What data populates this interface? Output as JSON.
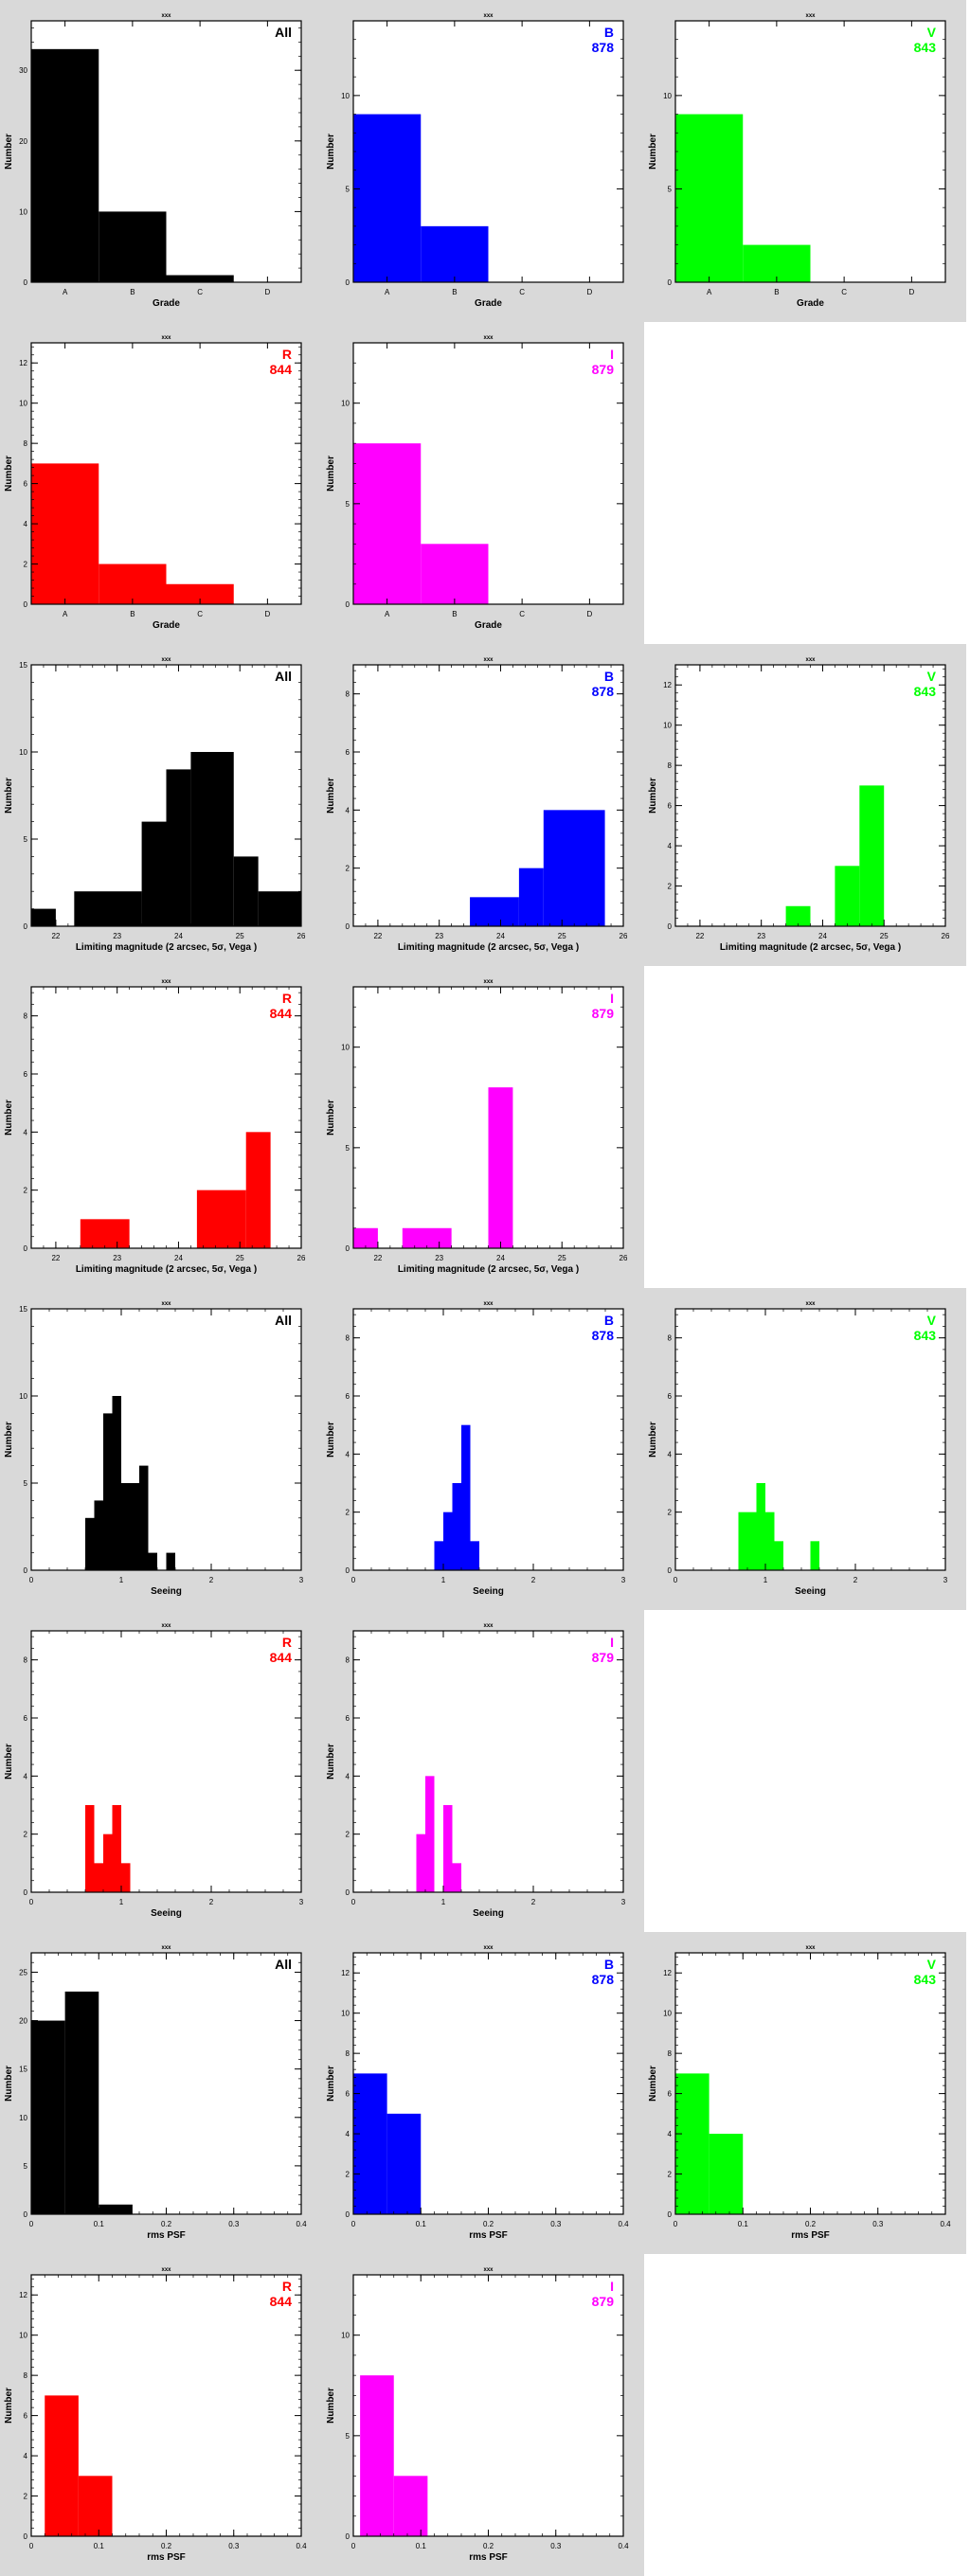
{
  "figure": {
    "panel_background": "#d9d9d9",
    "plot_background": "#ffffff",
    "top_label": "xxx"
  },
  "chart_data": [
    {
      "row": 0,
      "col": 0,
      "type": "bar",
      "title": "xxx",
      "band": "All",
      "count": "",
      "color": "#000000",
      "xlabel": "Grade",
      "xaxis": "cat",
      "xlim": [
        0,
        4
      ],
      "ticks": [
        "A",
        "B",
        "C",
        "D"
      ],
      "ylim": [
        0,
        37
      ],
      "yticks": [
        0,
        10,
        20,
        30
      ],
      "ylabel": "Number",
      "bars": [
        [
          0,
          1,
          33
        ],
        [
          1,
          2,
          10
        ],
        [
          2,
          3,
          1
        ]
      ]
    },
    {
      "row": 0,
      "col": 1,
      "type": "bar",
      "title": "xxx",
      "band": "B",
      "count": "878",
      "color": "#0000ff",
      "xlabel": "Grade",
      "xaxis": "cat",
      "xlim": [
        0,
        4
      ],
      "ticks": [
        "A",
        "B",
        "C",
        "D"
      ],
      "ylim": [
        0,
        14
      ],
      "yticks": [
        0,
        5,
        10
      ],
      "ylabel": "Number",
      "bars": [
        [
          0,
          1,
          9
        ],
        [
          1,
          2,
          3
        ]
      ]
    },
    {
      "row": 0,
      "col": 2,
      "type": "bar",
      "title": "xxx",
      "band": "V",
      "count": "843",
      "color": "#00ff00",
      "xlabel": "Grade",
      "xaxis": "cat",
      "xlim": [
        0,
        4
      ],
      "ticks": [
        "A",
        "B",
        "C",
        "D"
      ],
      "ylim": [
        0,
        14
      ],
      "yticks": [
        0,
        5,
        10
      ],
      "ylabel": "Number",
      "bars": [
        [
          0,
          1,
          9
        ],
        [
          1,
          2,
          2
        ]
      ]
    },
    {
      "row": 1,
      "col": 0,
      "type": "bar",
      "title": "xxx",
      "band": "R",
      "count": "844",
      "color": "#ff0000",
      "xlabel": "Grade",
      "xaxis": "cat",
      "xlim": [
        0,
        4
      ],
      "ticks": [
        "A",
        "B",
        "C",
        "D"
      ],
      "ylim": [
        0,
        13
      ],
      "yticks": [
        0,
        2,
        4,
        6,
        8,
        10,
        12
      ],
      "ylabel": "Number",
      "bars": [
        [
          0,
          1,
          7
        ],
        [
          1,
          2,
          2
        ],
        [
          2,
          3,
          1
        ]
      ]
    },
    {
      "row": 1,
      "col": 1,
      "type": "bar",
      "title": "xxx",
      "band": "I",
      "count": "879",
      "color": "#ff00ff",
      "xlabel": "Grade",
      "xaxis": "cat",
      "xlim": [
        0,
        4
      ],
      "ticks": [
        "A",
        "B",
        "C",
        "D"
      ],
      "ylim": [
        0,
        13
      ],
      "yticks": [
        0,
        5,
        10
      ],
      "ylabel": "Number",
      "bars": [
        [
          0,
          1,
          8
        ],
        [
          1,
          2,
          3
        ]
      ]
    },
    {
      "row": 2,
      "col": 0,
      "type": "bar",
      "title": "xxx",
      "band": "All",
      "count": "",
      "color": "#000000",
      "xlabel": "Limiting magnitude (2 arcsec, 5σ, Vega )",
      "xaxis": "num",
      "xlim": [
        21.6,
        26
      ],
      "xticks": [
        22,
        23,
        24,
        25,
        26
      ],
      "ylim": [
        0,
        15
      ],
      "yticks": [
        0,
        5,
        10,
        15
      ],
      "ylabel": "Number",
      "bars": [
        [
          21.6,
          22.0,
          1
        ],
        [
          22.3,
          23.4,
          2
        ],
        [
          23.4,
          23.8,
          6
        ],
        [
          23.8,
          24.2,
          9
        ],
        [
          24.2,
          24.9,
          10
        ],
        [
          24.9,
          25.3,
          4
        ],
        [
          25.3,
          26.0,
          2
        ]
      ]
    },
    {
      "row": 2,
      "col": 1,
      "type": "bar",
      "title": "xxx",
      "band": "B",
      "count": "878",
      "color": "#0000ff",
      "xlabel": "Limiting magnitude (2 arcsec, 5σ, Vega )",
      "xaxis": "num",
      "xlim": [
        21.6,
        26
      ],
      "xticks": [
        22,
        23,
        24,
        25,
        26
      ],
      "ylim": [
        0,
        9
      ],
      "yticks": [
        0,
        2,
        4,
        6,
        8
      ],
      "ylabel": "Number",
      "bars": [
        [
          23.5,
          24.3,
          1
        ],
        [
          24.3,
          24.7,
          2
        ],
        [
          24.7,
          25.7,
          4
        ]
      ]
    },
    {
      "row": 2,
      "col": 2,
      "type": "bar",
      "title": "xxx",
      "band": "V",
      "count": "843",
      "color": "#00ff00",
      "xlabel": "Limiting magnitude (2 arcsec, 5σ, Vega )",
      "xaxis": "num",
      "xlim": [
        21.6,
        26
      ],
      "xticks": [
        22,
        23,
        24,
        25,
        26
      ],
      "ylim": [
        0,
        13
      ],
      "yticks": [
        0,
        2,
        4,
        6,
        8,
        10,
        12
      ],
      "ylabel": "Number",
      "bars": [
        [
          23.4,
          23.8,
          1
        ],
        [
          24.2,
          24.6,
          3
        ],
        [
          24.6,
          25.0,
          7
        ]
      ]
    },
    {
      "row": 3,
      "col": 0,
      "type": "bar",
      "title": "xxx",
      "band": "R",
      "count": "844",
      "color": "#ff0000",
      "xlabel": "Limiting magnitude (2 arcsec, 5σ, Vega )",
      "xaxis": "num",
      "xlim": [
        21.6,
        26
      ],
      "xticks": [
        22,
        23,
        24,
        25,
        26
      ],
      "ylim": [
        0,
        9
      ],
      "yticks": [
        0,
        2,
        4,
        6,
        8
      ],
      "ylabel": "Number",
      "bars": [
        [
          22.4,
          23.2,
          1
        ],
        [
          24.3,
          25.1,
          2
        ],
        [
          25.1,
          25.5,
          4
        ]
      ]
    },
    {
      "row": 3,
      "col": 1,
      "type": "bar",
      "title": "xxx",
      "band": "I",
      "count": "879",
      "color": "#ff00ff",
      "xlabel": "Limiting magnitude (2 arcsec, 5σ, Vega )",
      "xaxis": "num",
      "xlim": [
        21.6,
        26
      ],
      "xticks": [
        22,
        23,
        24,
        25,
        26
      ],
      "ylim": [
        0,
        13
      ],
      "yticks": [
        0,
        5,
        10
      ],
      "ylabel": "Number",
      "bars": [
        [
          21.6,
          22.0,
          1
        ],
        [
          22.4,
          23.2,
          1
        ],
        [
          23.8,
          24.2,
          8
        ]
      ]
    },
    {
      "row": 4,
      "col": 0,
      "type": "bar",
      "title": "xxx",
      "band": "All",
      "count": "",
      "color": "#000000",
      "xlabel": "Seeing",
      "xaxis": "num",
      "xlim": [
        0,
        3
      ],
      "xticks": [
        0,
        1,
        2,
        3
      ],
      "ylim": [
        0,
        15
      ],
      "yticks": [
        0,
        5,
        10,
        15
      ],
      "ylabel": "Number",
      "bars": [
        [
          0.6,
          0.7,
          3
        ],
        [
          0.7,
          0.8,
          4
        ],
        [
          0.8,
          0.9,
          9
        ],
        [
          0.9,
          1.0,
          10
        ],
        [
          1.0,
          1.1,
          5
        ],
        [
          1.1,
          1.2,
          5
        ],
        [
          1.2,
          1.3,
          6
        ],
        [
          1.3,
          1.4,
          1
        ],
        [
          1.5,
          1.6,
          1
        ]
      ]
    },
    {
      "row": 4,
      "col": 1,
      "type": "bar",
      "title": "xxx",
      "band": "B",
      "count": "878",
      "color": "#0000ff",
      "xlabel": "Seeing",
      "xaxis": "num",
      "xlim": [
        0,
        3
      ],
      "xticks": [
        0,
        1,
        2,
        3
      ],
      "ylim": [
        0,
        9
      ],
      "yticks": [
        0,
        2,
        4,
        6,
        8
      ],
      "ylabel": "Number",
      "bars": [
        [
          0.9,
          1.0,
          1
        ],
        [
          1.0,
          1.1,
          2
        ],
        [
          1.1,
          1.2,
          3
        ],
        [
          1.2,
          1.3,
          5
        ],
        [
          1.3,
          1.4,
          1
        ]
      ]
    },
    {
      "row": 4,
      "col": 2,
      "type": "bar",
      "title": "xxx",
      "band": "V",
      "count": "843",
      "color": "#00ff00",
      "xlabel": "Seeing",
      "xaxis": "num",
      "xlim": [
        0,
        3
      ],
      "xticks": [
        0,
        1,
        2,
        3
      ],
      "ylim": [
        0,
        9
      ],
      "yticks": [
        0,
        2,
        4,
        6,
        8
      ],
      "ylabel": "Number",
      "bars": [
        [
          0.7,
          0.8,
          2
        ],
        [
          0.8,
          0.9,
          2
        ],
        [
          0.9,
          1.0,
          3
        ],
        [
          1.0,
          1.1,
          2
        ],
        [
          1.1,
          1.2,
          1
        ],
        [
          1.5,
          1.6,
          1
        ]
      ]
    },
    {
      "row": 5,
      "col": 0,
      "type": "bar",
      "title": "xxx",
      "band": "R",
      "count": "844",
      "color": "#ff0000",
      "xlabel": "Seeing",
      "xaxis": "num",
      "xlim": [
        0,
        3
      ],
      "xticks": [
        0,
        1,
        2,
        3
      ],
      "ylim": [
        0,
        9
      ],
      "yticks": [
        0,
        2,
        4,
        6,
        8
      ],
      "ylabel": "Number",
      "bars": [
        [
          0.6,
          0.7,
          3
        ],
        [
          0.7,
          0.8,
          1
        ],
        [
          0.8,
          0.9,
          2
        ],
        [
          0.9,
          1.0,
          3
        ],
        [
          1.0,
          1.1,
          1
        ]
      ]
    },
    {
      "row": 5,
      "col": 1,
      "type": "bar",
      "title": "xxx",
      "band": "I",
      "count": "879",
      "color": "#ff00ff",
      "xlabel": "Seeing",
      "xaxis": "num",
      "xlim": [
        0,
        3
      ],
      "xticks": [
        0,
        1,
        2,
        3
      ],
      "ylim": [
        0,
        9
      ],
      "yticks": [
        0,
        2,
        4,
        6,
        8
      ],
      "ylabel": "Number",
      "bars": [
        [
          0.7,
          0.8,
          2
        ],
        [
          0.8,
          0.9,
          4
        ],
        [
          1.0,
          1.1,
          3
        ],
        [
          1.1,
          1.2,
          1
        ]
      ]
    },
    {
      "row": 6,
      "col": 0,
      "type": "bar",
      "title": "xxx",
      "band": "All",
      "count": "",
      "color": "#000000",
      "xlabel": "rms PSF",
      "xaxis": "num",
      "xlim": [
        0,
        0.4
      ],
      "xticks": [
        0,
        0.1,
        0.2,
        0.3,
        0.4
      ],
      "ylim": [
        0,
        27
      ],
      "yticks": [
        0,
        5,
        10,
        15,
        20,
        25
      ],
      "ylabel": "Number",
      "bars": [
        [
          0.0,
          0.05,
          20
        ],
        [
          0.05,
          0.1,
          23
        ],
        [
          0.1,
          0.15,
          1
        ]
      ]
    },
    {
      "row": 6,
      "col": 1,
      "type": "bar",
      "title": "xxx",
      "band": "B",
      "count": "878",
      "color": "#0000ff",
      "xlabel": "rms PSF",
      "xaxis": "num",
      "xlim": [
        0,
        0.4
      ],
      "xticks": [
        0,
        0.1,
        0.2,
        0.3,
        0.4
      ],
      "ylim": [
        0,
        13
      ],
      "yticks": [
        0,
        2,
        4,
        6,
        8,
        10,
        12
      ],
      "ylabel": "Number",
      "bars": [
        [
          0.0,
          0.05,
          7
        ],
        [
          0.05,
          0.1,
          5
        ]
      ]
    },
    {
      "row": 6,
      "col": 2,
      "type": "bar",
      "title": "xxx",
      "band": "V",
      "count": "843",
      "color": "#00ff00",
      "xlabel": "rms PSF",
      "xaxis": "num",
      "xlim": [
        0,
        0.4
      ],
      "xticks": [
        0,
        0.1,
        0.2,
        0.3,
        0.4
      ],
      "ylim": [
        0,
        13
      ],
      "yticks": [
        0,
        2,
        4,
        6,
        8,
        10,
        12
      ],
      "ylabel": "Number",
      "bars": [
        [
          0.0,
          0.05,
          7
        ],
        [
          0.05,
          0.1,
          4
        ]
      ]
    },
    {
      "row": 7,
      "col": 0,
      "type": "bar",
      "title": "xxx",
      "band": "R",
      "count": "844",
      "color": "#ff0000",
      "xlabel": "rms PSF",
      "xaxis": "num",
      "xlim": [
        0,
        0.4
      ],
      "xticks": [
        0,
        0.1,
        0.2,
        0.3,
        0.4
      ],
      "ylim": [
        0,
        13
      ],
      "yticks": [
        0,
        2,
        4,
        6,
        8,
        10,
        12
      ],
      "ylabel": "Number",
      "bars": [
        [
          0.02,
          0.07,
          7
        ],
        [
          0.07,
          0.12,
          3
        ]
      ]
    },
    {
      "row": 7,
      "col": 1,
      "type": "bar",
      "title": "xxx",
      "band": "I",
      "count": "879",
      "color": "#ff00ff",
      "xlabel": "rms PSF",
      "xaxis": "num",
      "xlim": [
        0,
        0.4
      ],
      "xticks": [
        0,
        0.1,
        0.2,
        0.3,
        0.4
      ],
      "ylim": [
        0,
        13
      ],
      "yticks": [
        0,
        5,
        10
      ],
      "ylabel": "Number",
      "bars": [
        [
          0.01,
          0.06,
          8
        ],
        [
          0.06,
          0.11,
          3
        ]
      ]
    }
  ]
}
